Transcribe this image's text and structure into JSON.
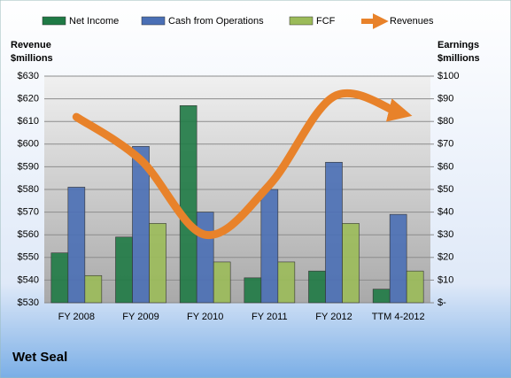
{
  "chart_data": {
    "type": "bar-line",
    "title": "Wet Seal",
    "ylabel": [
      "Revenue",
      "$millions"
    ],
    "y2label": [
      "Earnings",
      "$millions"
    ],
    "categories": [
      "FY 2008",
      "FY 2009",
      "FY 2010",
      "FY 2011",
      "FY 2012",
      "TTM 4-2012"
    ],
    "ylim": [
      530,
      630
    ],
    "yticks": [
      {
        "value": 530,
        "label": "$530"
      },
      {
        "value": 540,
        "label": "$540"
      },
      {
        "value": 550,
        "label": "$550"
      },
      {
        "value": 560,
        "label": "$560"
      },
      {
        "value": 570,
        "label": "$570"
      },
      {
        "value": 580,
        "label": "$580"
      },
      {
        "value": 590,
        "label": "$590"
      },
      {
        "value": 600,
        "label": "$600"
      },
      {
        "value": 610,
        "label": "$610"
      },
      {
        "value": 620,
        "label": "$620"
      },
      {
        "value": 630,
        "label": "$630"
      }
    ],
    "y2lim": [
      0,
      100
    ],
    "y2ticks": [
      {
        "value": 0,
        "label": "$-"
      },
      {
        "value": 10,
        "label": "$10"
      },
      {
        "value": 20,
        "label": "$20"
      },
      {
        "value": 30,
        "label": "$30"
      },
      {
        "value": 40,
        "label": "$40"
      },
      {
        "value": 50,
        "label": "$50"
      },
      {
        "value": 60,
        "label": "$60"
      },
      {
        "value": 70,
        "label": "$70"
      },
      {
        "value": 80,
        "label": "$80"
      },
      {
        "value": 90,
        "label": "$90"
      },
      {
        "value": 100,
        "label": "$100"
      }
    ],
    "grid": true,
    "series": [
      {
        "name": "Net Income",
        "color": "#1f7a45",
        "type": "bar",
        "axis": "y2",
        "values": [
          22,
          29,
          87,
          11,
          14,
          6
        ]
      },
      {
        "name": "Cash from Operations",
        "color": "#4a6fb5",
        "type": "bar",
        "axis": "y2",
        "values": [
          51,
          69,
          40,
          50,
          62,
          39
        ]
      },
      {
        "name": "FCF",
        "color": "#9bbb59",
        "type": "bar",
        "axis": "y2",
        "values": [
          12,
          35,
          18,
          18,
          35,
          14
        ]
      },
      {
        "name": "Revenues",
        "color": "#e8822a",
        "type": "line",
        "values": [
          612,
          593,
          560,
          582,
          621,
          614
        ]
      }
    ]
  }
}
